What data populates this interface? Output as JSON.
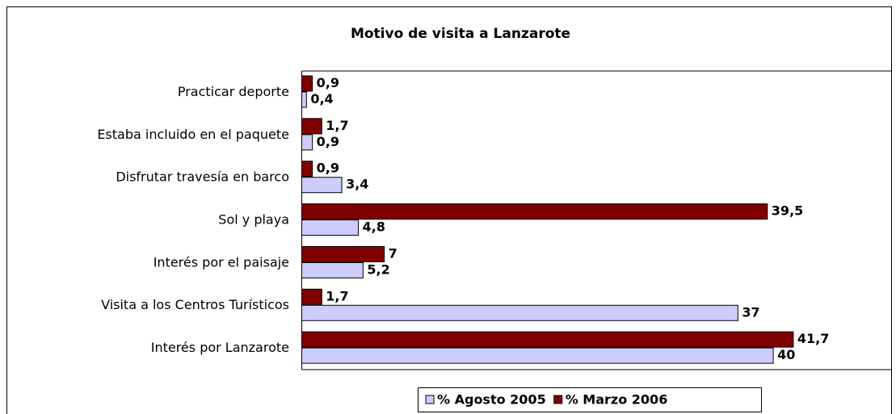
{
  "chart_data": {
    "type": "barh",
    "title": "Motivo de visita a Lanzarote",
    "categories": [
      "Practicar deporte",
      "Estaba incluido en el paquete",
      "Disfrutar travesía en barco",
      "Sol y playa",
      "Interés por el paisaje",
      "Visita a los Centros Turísticos",
      "Interés por Lanzarote"
    ],
    "series": [
      {
        "name": "% Agosto 2005",
        "color": "#ccccff",
        "values": [
          0.4,
          0.9,
          3.4,
          4.8,
          5.2,
          37,
          40
        ],
        "value_labels": [
          "0,4",
          "0,9",
          "3,4",
          "4,8",
          "5,2",
          "37",
          "40"
        ]
      },
      {
        "name": "% Marzo 2006",
        "color": "#800000",
        "values": [
          0.9,
          1.7,
          0.9,
          39.5,
          7,
          1.7,
          41.7
        ],
        "value_labels": [
          "0,9",
          "1,7",
          "0,9",
          "39,5",
          "7",
          "1,7",
          "41,7"
        ]
      }
    ],
    "xlim": [
      0,
      50
    ],
    "legend": "bottom"
  }
}
